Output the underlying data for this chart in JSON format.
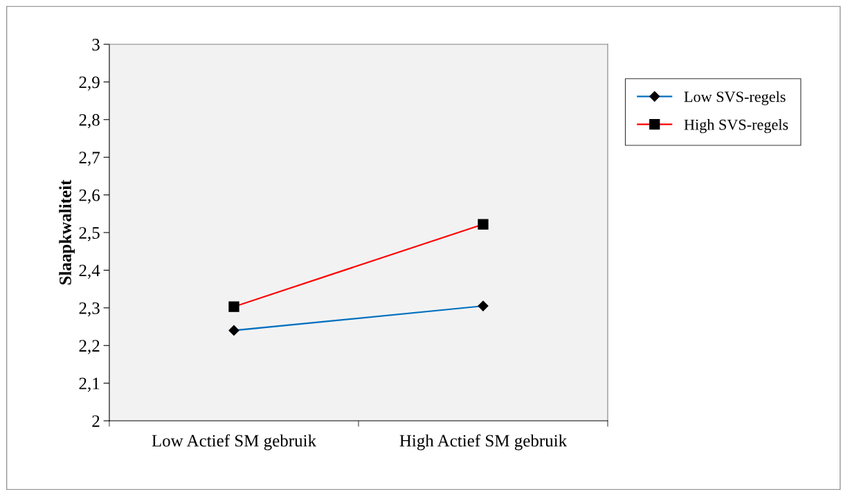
{
  "chart_data": {
    "type": "line",
    "ylabel": "Slaapkwaliteit",
    "categories": [
      "Low Actief SM gebruik",
      "High Actief SM gebruik"
    ],
    "series": [
      {
        "name": "Low SVS-regels",
        "color": "#0070c0",
        "marker": "diamond",
        "values": [
          2.24,
          2.305
        ]
      },
      {
        "name": "High SVS-regels",
        "color": "#ff0000",
        "marker": "square",
        "values": [
          2.303,
          2.522
        ]
      }
    ],
    "ylim": [
      2,
      3
    ],
    "yticks": [
      {
        "value": 2,
        "label": "2"
      },
      {
        "value": 2.1,
        "label": "2,1"
      },
      {
        "value": 2.2,
        "label": "2,2"
      },
      {
        "value": 2.3,
        "label": "2,3"
      },
      {
        "value": 2.4,
        "label": "2,4"
      },
      {
        "value": 2.5,
        "label": "2,5"
      },
      {
        "value": 2.6,
        "label": "2,6"
      },
      {
        "value": 2.7,
        "label": "2,7"
      },
      {
        "value": 2.8,
        "label": "2,8"
      },
      {
        "value": 2.9,
        "label": "2,9"
      },
      {
        "value": 3,
        "label": "3"
      }
    ],
    "grid": false,
    "legend": "right",
    "line_style": "solid"
  }
}
